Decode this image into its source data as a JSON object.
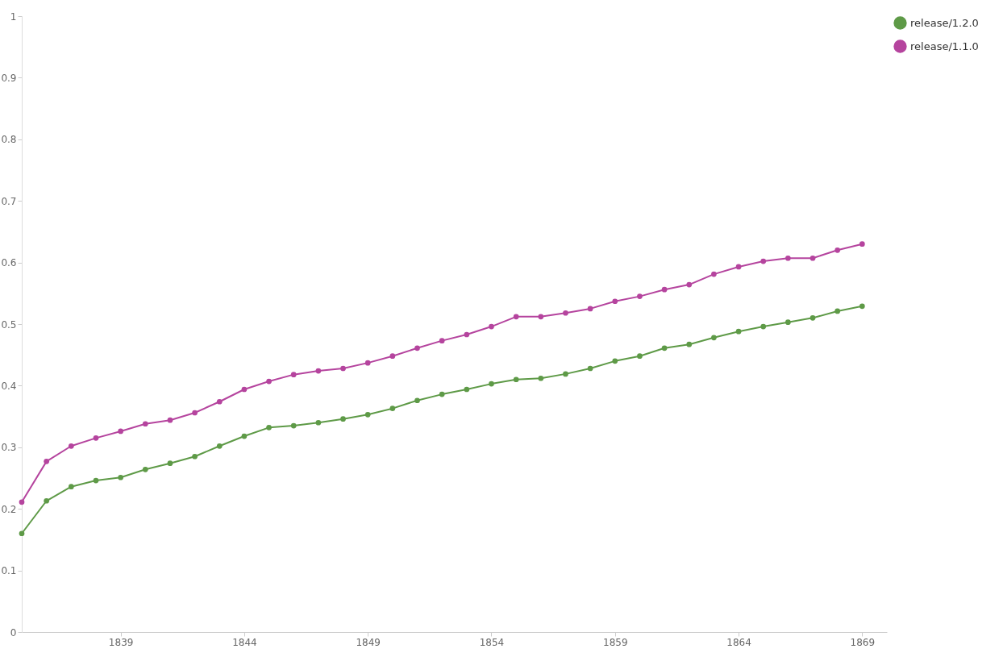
{
  "chart_data": {
    "type": "line",
    "x": [
      1835,
      1836,
      1837,
      1838,
      1839,
      1840,
      1841,
      1842,
      1843,
      1844,
      1845,
      1846,
      1847,
      1848,
      1849,
      1850,
      1851,
      1852,
      1853,
      1854,
      1855,
      1856,
      1857,
      1858,
      1859,
      1860,
      1861,
      1862,
      1863,
      1864,
      1865,
      1866,
      1867,
      1868,
      1869
    ],
    "series": [
      {
        "name": "release/1.2.0",
        "color": "#5e9a47",
        "values": [
          0.16,
          0.213,
          0.236,
          0.246,
          0.251,
          0.264,
          0.274,
          0.285,
          0.302,
          0.318,
          0.332,
          0.335,
          0.34,
          0.346,
          0.353,
          0.363,
          0.376,
          0.386,
          0.394,
          0.403,
          0.41,
          0.412,
          0.419,
          0.428,
          0.44,
          0.448,
          0.461,
          0.467,
          0.478,
          0.488,
          0.496,
          0.503,
          0.51,
          0.521,
          0.529
        ]
      },
      {
        "name": "release/1.1.0",
        "color": "#b5449e",
        "values": [
          0.211,
          0.277,
          0.302,
          0.315,
          0.326,
          0.338,
          0.344,
          0.356,
          0.374,
          0.394,
          0.407,
          0.418,
          0.424,
          0.428,
          0.437,
          0.448,
          0.461,
          0.473,
          0.483,
          0.496,
          0.512,
          0.512,
          0.518,
          0.525,
          0.537,
          0.545,
          0.556,
          0.564,
          0.581,
          0.593,
          0.602,
          0.607,
          0.607,
          0.62,
          0.63
        ]
      }
    ],
    "xlim": [
      1835,
      1870
    ],
    "xticks": [
      1839,
      1844,
      1849,
      1854,
      1859,
      1864,
      1869
    ],
    "ylim": [
      0,
      1
    ],
    "yticks": [
      0,
      0.1,
      0.2,
      0.3,
      0.4,
      0.5,
      0.6,
      0.7,
      0.8,
      0.9,
      1
    ],
    "grid": false,
    "legend": "top right",
    "marker": "circle",
    "line_style": "solid"
  }
}
